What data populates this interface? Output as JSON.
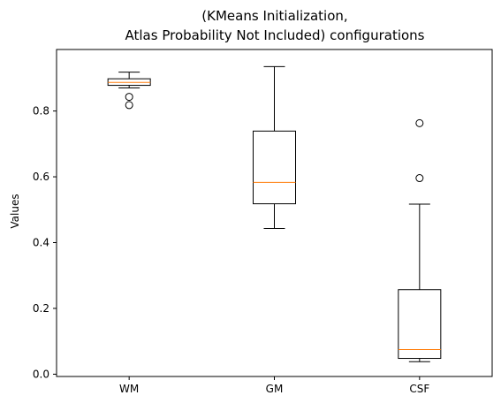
{
  "chart_data": {
    "type": "box",
    "title_lines": [
      "(KMeans Initialization,",
      "Atlas Probability Not Included) configurations"
    ],
    "xlabel": "",
    "ylabel": "Values",
    "ylim": [
      -0.007,
      0.987
    ],
    "yticks": [
      0.0,
      0.2,
      0.4,
      0.6,
      0.8
    ],
    "ytick_labels": [
      "0.0",
      "0.2",
      "0.4",
      "0.6",
      "0.8"
    ],
    "categories": [
      "WM",
      "GM",
      "CSF"
    ],
    "boxes": [
      {
        "label": "WM",
        "whisker_low": 0.87,
        "q1": 0.878,
        "median": 0.887,
        "q3": 0.898,
        "whisker_high": 0.918,
        "outliers": [
          0.843,
          0.818
        ]
      },
      {
        "label": "GM",
        "whisker_low": 0.443,
        "q1": 0.518,
        "median": 0.583,
        "q3": 0.739,
        "whisker_high": 0.935,
        "outliers": []
      },
      {
        "label": "CSF",
        "whisker_low": 0.038,
        "q1": 0.048,
        "median": 0.075,
        "q3": 0.257,
        "whisker_high": 0.517,
        "outliers": [
          0.596,
          0.763
        ]
      }
    ],
    "grid": false,
    "colors": {
      "box": "#000000",
      "median": "#ff7f0e",
      "outlier": "#000000"
    }
  }
}
